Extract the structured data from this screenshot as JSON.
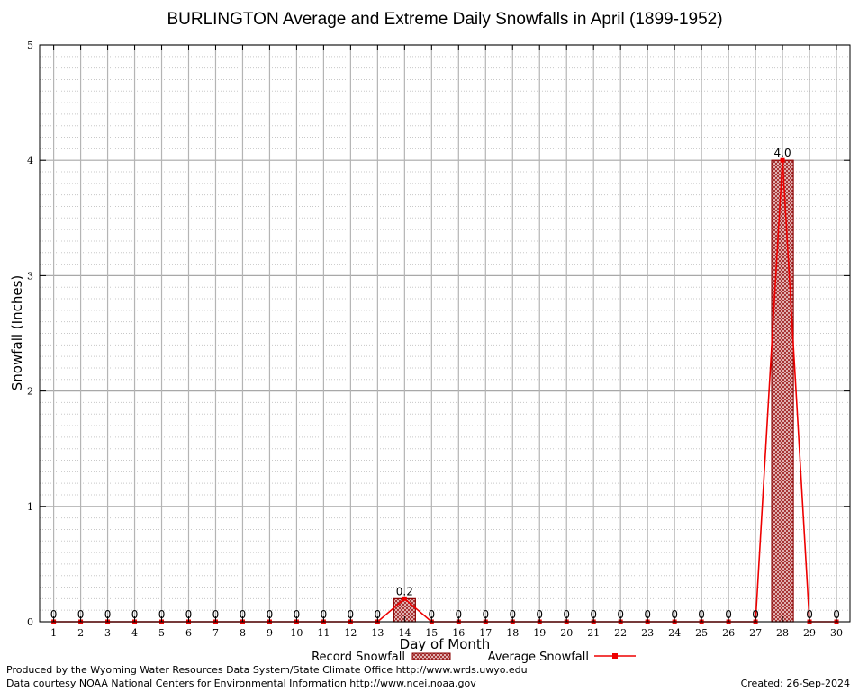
{
  "chart_data": {
    "type": "bar",
    "title": "BURLINGTON Average and Extreme Daily Snowfalls in April (1899-1952)",
    "xlabel": "Day of Month",
    "ylabel": "Snowfall (Inches)",
    "ylim": [
      0,
      5
    ],
    "yticks": [
      "0",
      "1",
      "2",
      "3",
      "4",
      "5"
    ],
    "grid": true,
    "categories": [
      "1",
      "2",
      "3",
      "4",
      "5",
      "6",
      "7",
      "8",
      "9",
      "10",
      "11",
      "12",
      "13",
      "14",
      "15",
      "16",
      "17",
      "18",
      "19",
      "20",
      "21",
      "22",
      "23",
      "24",
      "25",
      "26",
      "27",
      "28",
      "29",
      "30"
    ],
    "series": [
      {
        "name": "Record Snowfall",
        "kind": "bar",
        "values": [
          0,
          0,
          0,
          0,
          0,
          0,
          0,
          0,
          0,
          0,
          0,
          0,
          0,
          0.2,
          0,
          0,
          0,
          0,
          0,
          0,
          0,
          0,
          0,
          0,
          0,
          0,
          0,
          4.0,
          0,
          0
        ],
        "labels": [
          "0",
          "0",
          "0",
          "0",
          "0",
          "0",
          "0",
          "0",
          "0",
          "0",
          "0",
          "0",
          "0",
          "0.2",
          "0",
          "0",
          "0",
          "0",
          "0",
          "0",
          "0",
          "0",
          "0",
          "0",
          "0",
          "0",
          "0",
          "4.0",
          "0",
          "0"
        ]
      },
      {
        "name": "Average Snowfall",
        "kind": "line",
        "values": [
          0,
          0,
          0,
          0,
          0,
          0,
          0,
          0,
          0,
          0,
          0,
          0,
          0,
          0.2,
          0,
          0,
          0,
          0,
          0,
          0,
          0,
          0,
          0,
          0,
          0,
          0,
          0,
          4.0,
          0,
          0
        ]
      }
    ],
    "legend_position": "bottom-center",
    "colors": {
      "bar_fill": "#d9a0a0",
      "bar_edge": "#8b0000",
      "line": "#ee0000",
      "grid": "#c0c0c0"
    }
  },
  "footer": {
    "credit": "Produced by the Wyoming Water Resources Data System/State Climate Office http://www.wrds.uwyo.edu",
    "source": "Data courtesy NOAA National Centers for Environmental Information http://www.ncei.noaa.gov",
    "created": "Created:  26-Sep-2024"
  }
}
